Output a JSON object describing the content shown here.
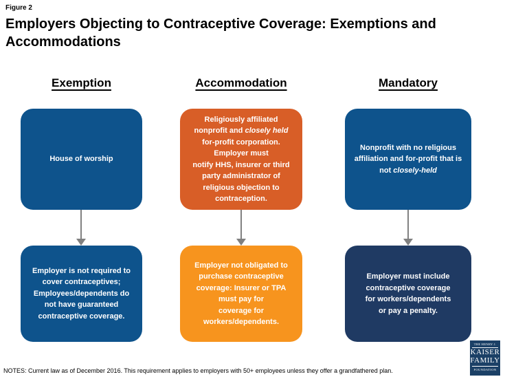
{
  "figure_label": "Figure 2",
  "title": "Employers Objecting to Contraceptive Coverage: Exemptions and Accommodations",
  "columns": [
    {
      "header": "Exemption",
      "top_box": {
        "text": "House of worship",
        "color": "#0E538C"
      },
      "bottom_box": {
        "text": "Employer is not required to\ncover contraceptives;\nEmployees/dependents do\nnot have guaranteed\ncontraceptive coverage.",
        "color": "#0E538C"
      }
    },
    {
      "header": "Accommodation",
      "top_box": {
        "text_before": "Religiously affiliated\nnonprofit and ",
        "italic": "closely held",
        "text_after": "\nfor-profit corporation.\nEmployer must\nnotify HHS, insurer or third\nparty administrator  of\nreligious objection to\ncontraception.",
        "color": "#D85E27"
      },
      "bottom_box": {
        "text": "Employer not obligated to\npurchase contraceptive\ncoverage: Insurer or TPA\nmust  pay for\ncoverage for\nworkers/dependents.",
        "color": "#F7941E"
      }
    },
    {
      "header": "Mandatory",
      "top_box": {
        "text_before": "Nonprofit with no religious\naffiliation and for-profit that is\nnot ",
        "italic": "closely-held",
        "color": "#0E538C"
      },
      "bottom_box": {
        "text": "Employer must include\ncontraceptive coverage\nfor workers/dependents\nor pay a penalty.",
        "color": "#1F3A63"
      }
    }
  ],
  "notes": "NOTES:  Current  law as of December  2016. This requirement applies to employers with 50+ employees  unless they offer a grandfathered plan.",
  "logo": {
    "line1": "THE HENRY J.",
    "line2": "KAISER",
    "line3": "FAMILY",
    "line4": "FOUNDATION"
  },
  "colors": {
    "primary_blue": "#0E538C",
    "burnt_orange": "#D85E27",
    "bright_orange": "#F7941E",
    "dark_navy": "#1F3A63",
    "arrow_gray": "#808080",
    "logo_navy": "#1B4066"
  }
}
